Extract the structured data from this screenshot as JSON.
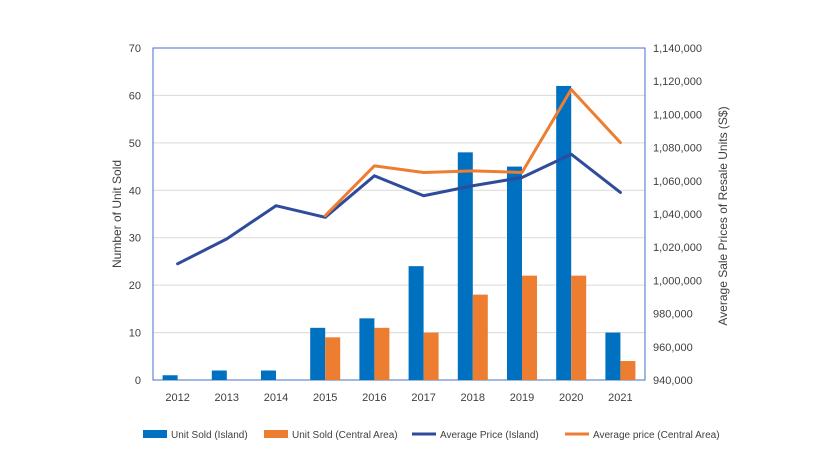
{
  "chart_data": {
    "type": "bar",
    "categories": [
      "2012",
      "2013",
      "2014",
      "2015",
      "2016",
      "2017",
      "2018",
      "2019",
      "2020",
      "2021"
    ],
    "series": [
      {
        "name": "Unit Sold (Island)",
        "kind": "bar",
        "axis": "left",
        "color": "#0070C0",
        "values": [
          1,
          2,
          2,
          11,
          13,
          24,
          48,
          45,
          62,
          10
        ]
      },
      {
        "name": "Unit Sold (Central Area)",
        "kind": "bar",
        "axis": "left",
        "color": "#ED7D31",
        "values": [
          null,
          null,
          null,
          9,
          11,
          10,
          18,
          22,
          22,
          4
        ]
      },
      {
        "name": "Average Price (Island)",
        "kind": "line",
        "axis": "right",
        "color": "#2F4B9B",
        "values": [
          1010000,
          1025000,
          1045000,
          1038000,
          1063000,
          1051000,
          1057000,
          1062000,
          1076000,
          1053000
        ]
      },
      {
        "name": "Average price (Central Area)",
        "kind": "line",
        "axis": "right",
        "color": "#ED7D31",
        "values": [
          null,
          null,
          null,
          1039000,
          1069000,
          1065000,
          1066000,
          1065000,
          1115000,
          1083000
        ]
      }
    ],
    "ylabel": "Number of Unit Sold",
    "ylim": [
      0,
      70
    ],
    "yticks": [
      "0",
      "10",
      "20",
      "30",
      "40",
      "50",
      "60",
      "70"
    ],
    "y2label": "Average Sale Prices of Resale Units (S$)",
    "y2lim": [
      940000,
      1140000
    ],
    "y2ticks": [
      "940,000",
      "960,000",
      "980,000",
      "1,000,000",
      "1,020,000",
      "1,040,000",
      "1,060,000",
      "1,080,000",
      "1,100,000",
      "1,120,000",
      "1,140,000"
    ],
    "grid": "horizontal",
    "legend_position": "bottom"
  }
}
